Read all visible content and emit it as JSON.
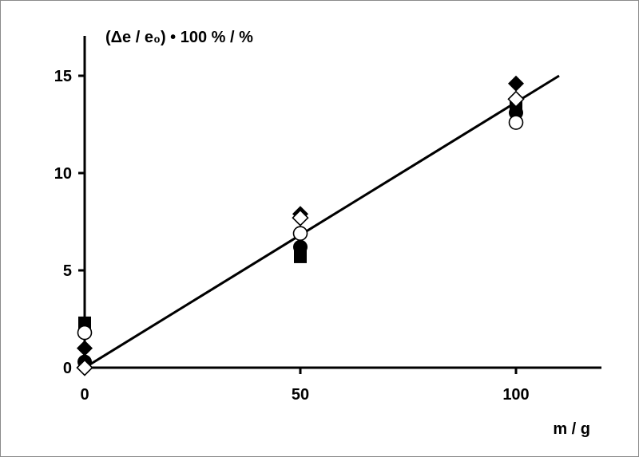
{
  "chart_data": {
    "type": "scatter",
    "ylabel": "(Δe / e₀) • 100 %   /   %",
    "xlabel": "m  /  g",
    "xlim": [
      0,
      120
    ],
    "ylim": [
      0,
      17
    ],
    "x_ticks": [
      "0",
      "50",
      "100"
    ],
    "y_ticks": [
      "0",
      "5",
      "10",
      "15"
    ],
    "x_tick_values": [
      0,
      50,
      100
    ],
    "y_tick_values": [
      0,
      5,
      10,
      15
    ],
    "grid": false,
    "series": [
      {
        "marker": "filled-square",
        "points": [
          [
            0,
            2.3
          ],
          [
            50,
            5.7
          ],
          [
            100,
            13.5
          ]
        ]
      },
      {
        "marker": "filled-circle",
        "points": [
          [
            0,
            0.3
          ],
          [
            50,
            6.2
          ],
          [
            100,
            13.1
          ]
        ]
      },
      {
        "marker": "filled-diamond",
        "points": [
          [
            0,
            1.0
          ],
          [
            50,
            7.9
          ],
          [
            100,
            14.6
          ]
        ]
      },
      {
        "marker": "open-diamond",
        "points": [
          [
            0,
            0.0
          ],
          [
            50,
            7.7
          ],
          [
            100,
            13.8
          ]
        ]
      },
      {
        "marker": "open-circle",
        "points": [
          [
            0,
            1.8
          ],
          [
            50,
            6.9
          ],
          [
            100,
            12.6
          ]
        ]
      }
    ],
    "fit_line": {
      "x": [
        0,
        110
      ],
      "y": [
        0,
        15.0
      ]
    },
    "colors": {
      "marker": "#000000",
      "line": "#000000",
      "axis": "#000000"
    }
  }
}
